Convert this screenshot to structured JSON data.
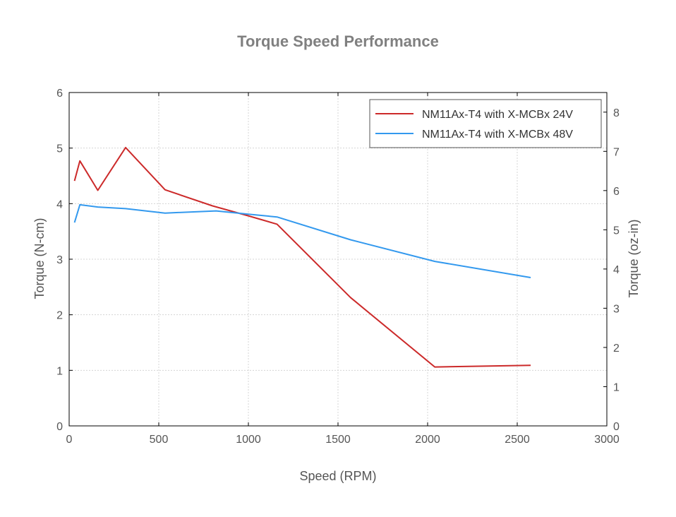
{
  "chart_data": {
    "type": "line",
    "title": "Torque Speed Performance",
    "xlabel": "Speed (RPM)",
    "ylabel": "Torque (N-cm)",
    "y2label": "Torque (oz-in)",
    "xlim": [
      0,
      3000
    ],
    "ylim": [
      0,
      6
    ],
    "y2lim": [
      0,
      8.5
    ],
    "x_ticks": [
      0,
      500,
      1000,
      1500,
      2000,
      2500,
      3000
    ],
    "y_ticks": [
      0,
      1,
      2,
      3,
      4,
      5,
      6
    ],
    "y2_ticks": [
      0,
      1,
      2,
      3,
      4,
      5,
      6,
      7,
      8
    ],
    "x_tick_labels": [
      "0",
      "500",
      "1000",
      "1500",
      "2000",
      "2500",
      "3000"
    ],
    "y_tick_labels": [
      "0",
      "1",
      "2",
      "3",
      "4",
      "5",
      "6"
    ],
    "y2_tick_labels": [
      "0",
      "1",
      "2",
      "3",
      "4",
      "5",
      "6",
      "7",
      "8"
    ],
    "grid": true,
    "legend_position": "top-right",
    "series": [
      {
        "name": "NM11Ax-T4 with X-MCBx 24V",
        "color": "#cc2a2a",
        "x": [
          30,
          60,
          160,
          315,
          535,
          800,
          1000,
          1160,
          1570,
          2040,
          2575
        ],
        "y": [
          4.41,
          4.77,
          4.24,
          5.01,
          4.25,
          3.96,
          3.78,
          3.63,
          2.31,
          1.06,
          1.09
        ]
      },
      {
        "name": "NM11Ax-T4 with X-MCBx 48V",
        "color": "#3399ee",
        "x": [
          30,
          60,
          160,
          315,
          535,
          820,
          1000,
          1160,
          1570,
          2040,
          2575
        ],
        "y": [
          3.66,
          3.98,
          3.94,
          3.91,
          3.83,
          3.87,
          3.81,
          3.76,
          3.35,
          2.96,
          2.67
        ]
      }
    ]
  }
}
